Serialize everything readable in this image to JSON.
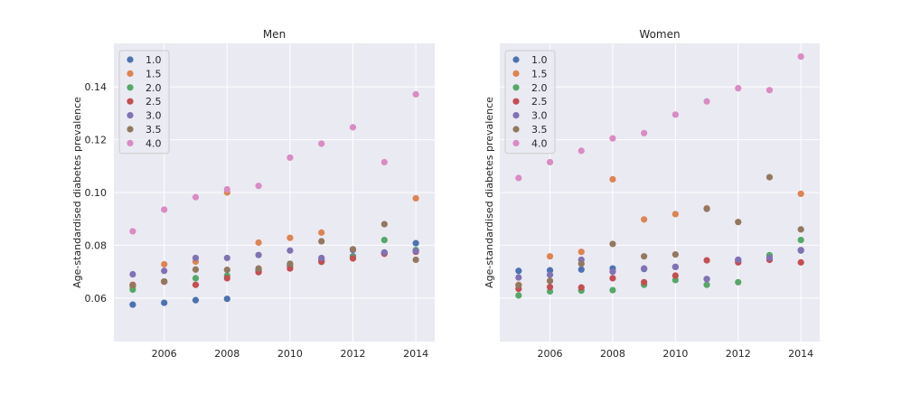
{
  "chart_data": [
    {
      "type": "scatter",
      "title": "Men",
      "xlabel": "",
      "ylabel": "Age-standardised diabetes prevalence",
      "xlim": [
        2004.4,
        2014.6
      ],
      "ylim": [
        0.0435,
        0.1565
      ],
      "xticks": [
        2006,
        2008,
        2010,
        2012,
        2014
      ],
      "yticks": [
        0.06,
        0.08,
        0.1,
        0.12,
        0.14
      ],
      "ytick_labels": [
        "0.06",
        "0.08",
        "0.10",
        "0.12",
        "0.14"
      ],
      "grid": true,
      "legend_position": "top-left",
      "x": [
        2005,
        2006,
        2007,
        2008,
        2009,
        2010,
        2011,
        2012,
        2013,
        2014
      ],
      "series": [
        {
          "name": "1.0",
          "color": "#4c72b0",
          "values": [
            0.0575,
            0.0582,
            0.0592,
            0.0597,
            0.0705,
            0.0722,
            0.0745,
            0.0758,
            0.0772,
            0.0808
          ]
        },
        {
          "name": "1.5",
          "color": "#dd8452",
          "values": [
            0.0643,
            0.0728,
            0.0738,
            0.1,
            0.081,
            0.0828,
            0.0848,
            0.0752,
            0.0768,
            0.0978
          ]
        },
        {
          "name": "2.0",
          "color": "#55a868",
          "values": [
            0.0632,
            0.0662,
            0.0675,
            0.0685,
            0.07,
            0.0725,
            0.0737,
            0.0755,
            0.082,
            0.0782
          ]
        },
        {
          "name": "2.5",
          "color": "#c44e52",
          "values": [
            0.065,
            0.0662,
            0.065,
            0.0675,
            0.0698,
            0.0712,
            0.0738,
            0.075,
            0.0768,
            0.0775
          ]
        },
        {
          "name": "3.0",
          "color": "#8172b3",
          "values": [
            0.069,
            0.0703,
            0.0752,
            0.0752,
            0.0763,
            0.078,
            0.0752,
            0.0782,
            0.0773,
            0.0778
          ]
        },
        {
          "name": "3.5",
          "color": "#937860",
          "values": [
            0.0648,
            0.0663,
            0.0708,
            0.0707,
            0.0712,
            0.073,
            0.0815,
            0.0785,
            0.088,
            0.0745
          ]
        },
        {
          "name": "4.0",
          "color": "#da8bc3",
          "values": [
            0.0853,
            0.0935,
            0.0982,
            0.1012,
            0.1025,
            0.1132,
            0.1185,
            0.1247,
            0.1115,
            0.1372
          ]
        }
      ]
    },
    {
      "type": "scatter",
      "title": "Women",
      "xlabel": "",
      "ylabel": "Age-standardised diabetes prevalence",
      "xlim": [
        2004.4,
        2014.6
      ],
      "ylim": [
        0.0435,
        0.1565
      ],
      "xticks": [
        2006,
        2008,
        2010,
        2012,
        2014
      ],
      "yticks": [
        0.06,
        0.08,
        0.1,
        0.12,
        0.14
      ],
      "ytick_labels": [],
      "grid": true,
      "legend_position": "top-left",
      "x": [
        2005,
        2006,
        2007,
        2008,
        2009,
        2010,
        2011,
        2012,
        2013,
        2014
      ],
      "series": [
        {
          "name": "1.0",
          "color": "#4c72b0",
          "values": [
            0.0703,
            0.0705,
            0.0708,
            0.0712,
            0.071,
            0.0718,
            0.0672,
            0.0745,
            0.0762,
            0.078
          ]
        },
        {
          "name": "1.5",
          "color": "#dd8452",
          "values": [
            0.065,
            0.0758,
            0.0775,
            0.105,
            0.0898,
            0.0918,
            0.094,
            0.0738,
            0.0745,
            0.0995
          ]
        },
        {
          "name": "2.0",
          "color": "#55a868",
          "values": [
            0.061,
            0.0625,
            0.0628,
            0.063,
            0.065,
            0.0668,
            0.065,
            0.066,
            0.0762,
            0.082
          ]
        },
        {
          "name": "2.5",
          "color": "#c44e52",
          "values": [
            0.0635,
            0.0642,
            0.064,
            0.0675,
            0.066,
            0.0685,
            0.0743,
            0.0735,
            0.0745,
            0.0735
          ]
        },
        {
          "name": "3.0",
          "color": "#8172b3",
          "values": [
            0.0678,
            0.0688,
            0.0745,
            0.07,
            0.0712,
            0.0718,
            0.0672,
            0.0745,
            0.0752,
            0.0782
          ]
        },
        {
          "name": "3.5",
          "color": "#937860",
          "values": [
            0.0648,
            0.0665,
            0.073,
            0.0805,
            0.0758,
            0.0765,
            0.0938,
            0.0888,
            0.1058,
            0.086
          ]
        },
        {
          "name": "4.0",
          "color": "#da8bc3",
          "values": [
            0.1055,
            0.1115,
            0.1158,
            0.1205,
            0.1225,
            0.1295,
            0.1345,
            0.1395,
            0.1388,
            0.1515
          ]
        }
      ]
    }
  ]
}
